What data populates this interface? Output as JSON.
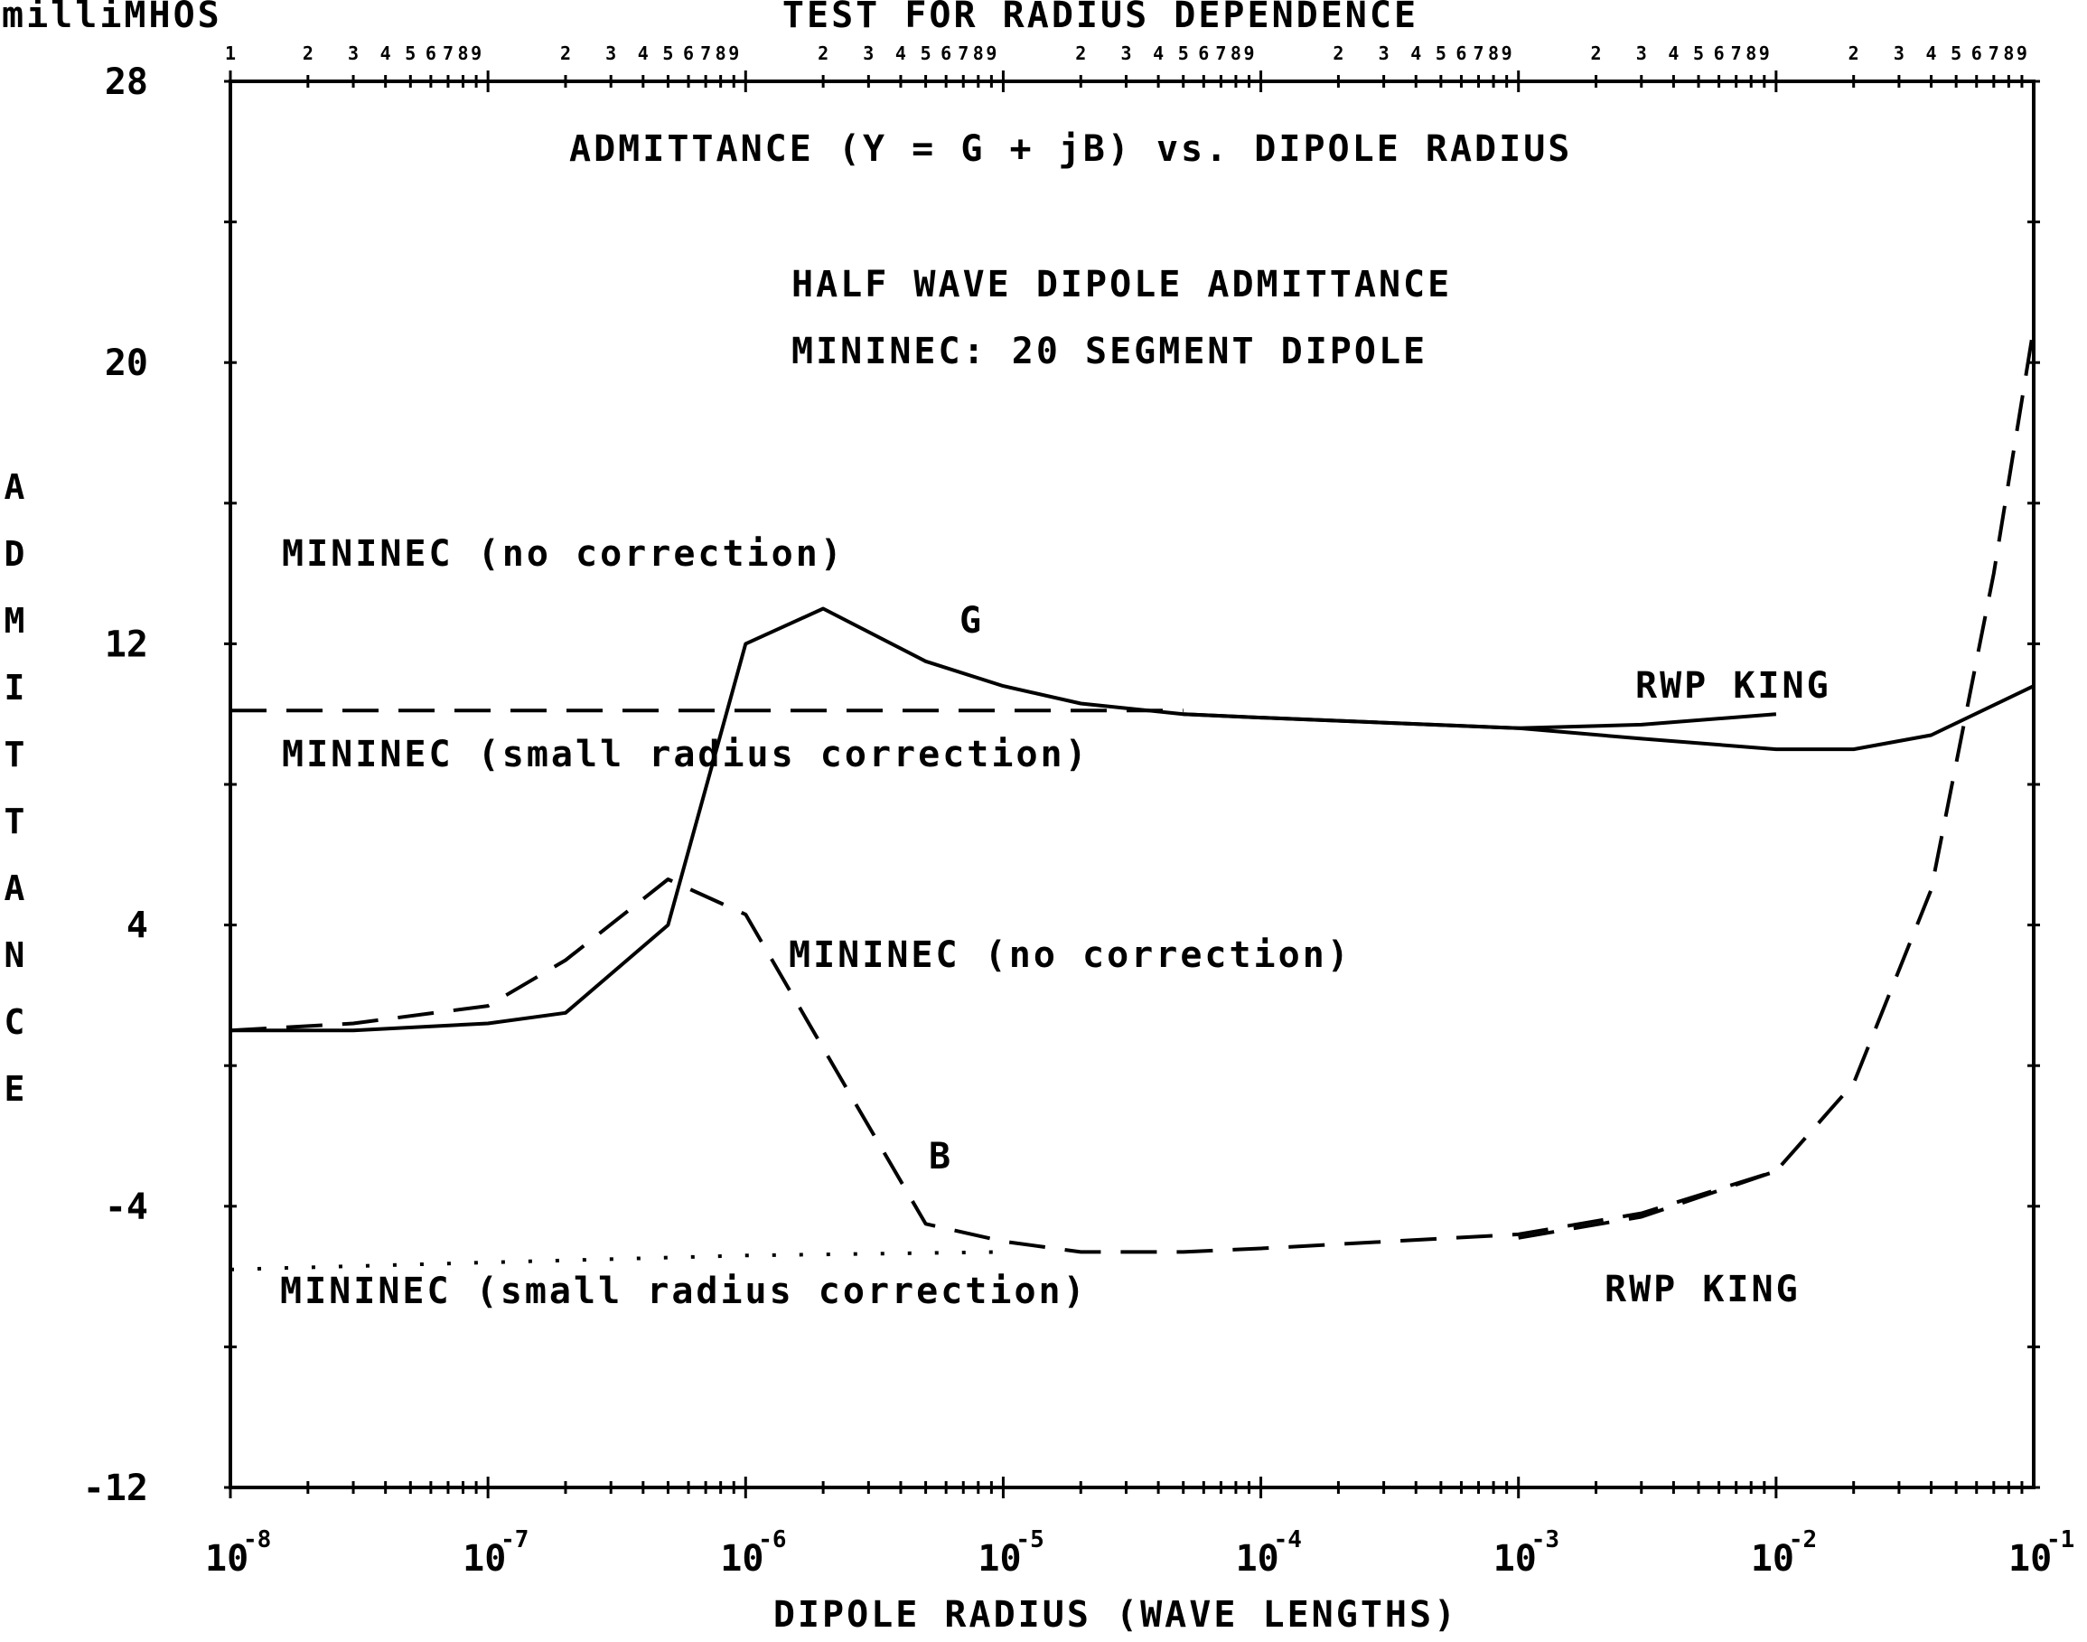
{
  "chart_data": {
    "type": "line",
    "title": "TEST FOR RADIUS DEPENDENCE",
    "ylabel": "ADMITTANCE",
    "yunit": "milliMHOS",
    "xlabel": "DIPOLE RADIUS (WAVE LENGTHS)",
    "xscale": "log",
    "xlim": [
      1e-08,
      0.1
    ],
    "ylim": [
      -12,
      28
    ],
    "yticks": [
      28,
      20,
      12,
      4,
      -4,
      -12
    ],
    "xticks": [
      {
        "value": 1e-08,
        "base": "10",
        "exp": "-8"
      },
      {
        "value": 1e-07,
        "base": "10",
        "exp": "-7"
      },
      {
        "value": 1e-06,
        "base": "10",
        "exp": "-6"
      },
      {
        "value": 1e-05,
        "base": "10",
        "exp": "-5"
      },
      {
        "value": 0.0001,
        "base": "10",
        "exp": "-4"
      },
      {
        "value": 0.001,
        "base": "10",
        "exp": "-3"
      },
      {
        "value": 0.01,
        "base": "10",
        "exp": "-2"
      },
      {
        "value": 0.1,
        "base": "10",
        "exp": "-1"
      }
    ],
    "top_axis_labels": [
      "1",
      "2",
      "3",
      "4",
      "5",
      "6",
      "7",
      "8",
      "9"
    ],
    "annotations": {
      "line1": "ADMITTANCE (Y = G + jB) vs. DIPOLE RADIUS",
      "line2": "HALF WAVE DIPOLE ADMITTANCE",
      "line3": "MININEC: 20 SEGMENT DIPOLE",
      "g_no_corr": "MININEC (no correction)",
      "g_small": "MININEC (small radius correction)",
      "g_letter": "G",
      "g_king": "RWP KING",
      "b_no_corr": "MININEC (no correction)",
      "b_letter": "B",
      "b_small": "MININEC (small radius correction)",
      "b_king": "RWP KING"
    },
    "series": [
      {
        "name": "G MININEC (no correction)",
        "style": "solid",
        "x": [
          1e-08,
          3e-08,
          1e-07,
          2e-07,
          5e-07,
          1e-06,
          2e-06,
          5e-06,
          1e-05,
          2e-05,
          5e-05,
          0.0001,
          0.001,
          0.003,
          0.01,
          0.02,
          0.04,
          0.1
        ],
        "y": [
          1.0,
          1.0,
          1.2,
          1.5,
          4.0,
          12.0,
          13.0,
          11.5,
          10.8,
          10.3,
          10.0,
          9.9,
          9.6,
          9.3,
          9.0,
          9.0,
          9.4,
          10.8
        ]
      },
      {
        "name": "G MININEC (small radius correction)",
        "style": "dashed",
        "x": [
          1e-08,
          1e-07,
          1e-06,
          1e-05,
          5e-05
        ],
        "y": [
          10.1,
          10.1,
          10.1,
          10.1,
          10.1
        ]
      },
      {
        "name": "G RWP KING",
        "style": "solid",
        "x": [
          5e-05,
          0.0001,
          0.001,
          0.003,
          0.01
        ],
        "y": [
          10.0,
          9.9,
          9.6,
          9.7,
          10.0
        ]
      },
      {
        "name": "B MININEC (no correction)",
        "style": "dashed",
        "x": [
          1e-08,
          3e-08,
          1e-07,
          2e-07,
          5e-07,
          1e-06,
          2e-06,
          5e-06,
          1e-05,
          2e-05,
          5e-05,
          0.0001,
          0.001,
          0.003,
          0.01,
          0.02,
          0.04,
          0.07,
          0.1
        ],
        "y": [
          1.0,
          1.2,
          1.7,
          3.0,
          5.3,
          4.3,
          0.5,
          -4.5,
          -5.0,
          -5.3,
          -5.3,
          -5.2,
          -4.8,
          -4.2,
          -3.0,
          -0.5,
          5.0,
          14.0,
          21.0
        ]
      },
      {
        "name": "B MININEC (small radius correction)",
        "style": "dotted",
        "x": [
          1e-08,
          1e-07,
          1e-06,
          1e-05
        ],
        "y": [
          -5.8,
          -5.6,
          -5.4,
          -5.3
        ]
      },
      {
        "name": "B RWP KING",
        "style": "dashed",
        "x": [
          0.001,
          0.003,
          0.01
        ],
        "y": [
          -4.9,
          -4.3,
          -3.0
        ]
      }
    ],
    "legend": "none",
    "grid": false
  }
}
